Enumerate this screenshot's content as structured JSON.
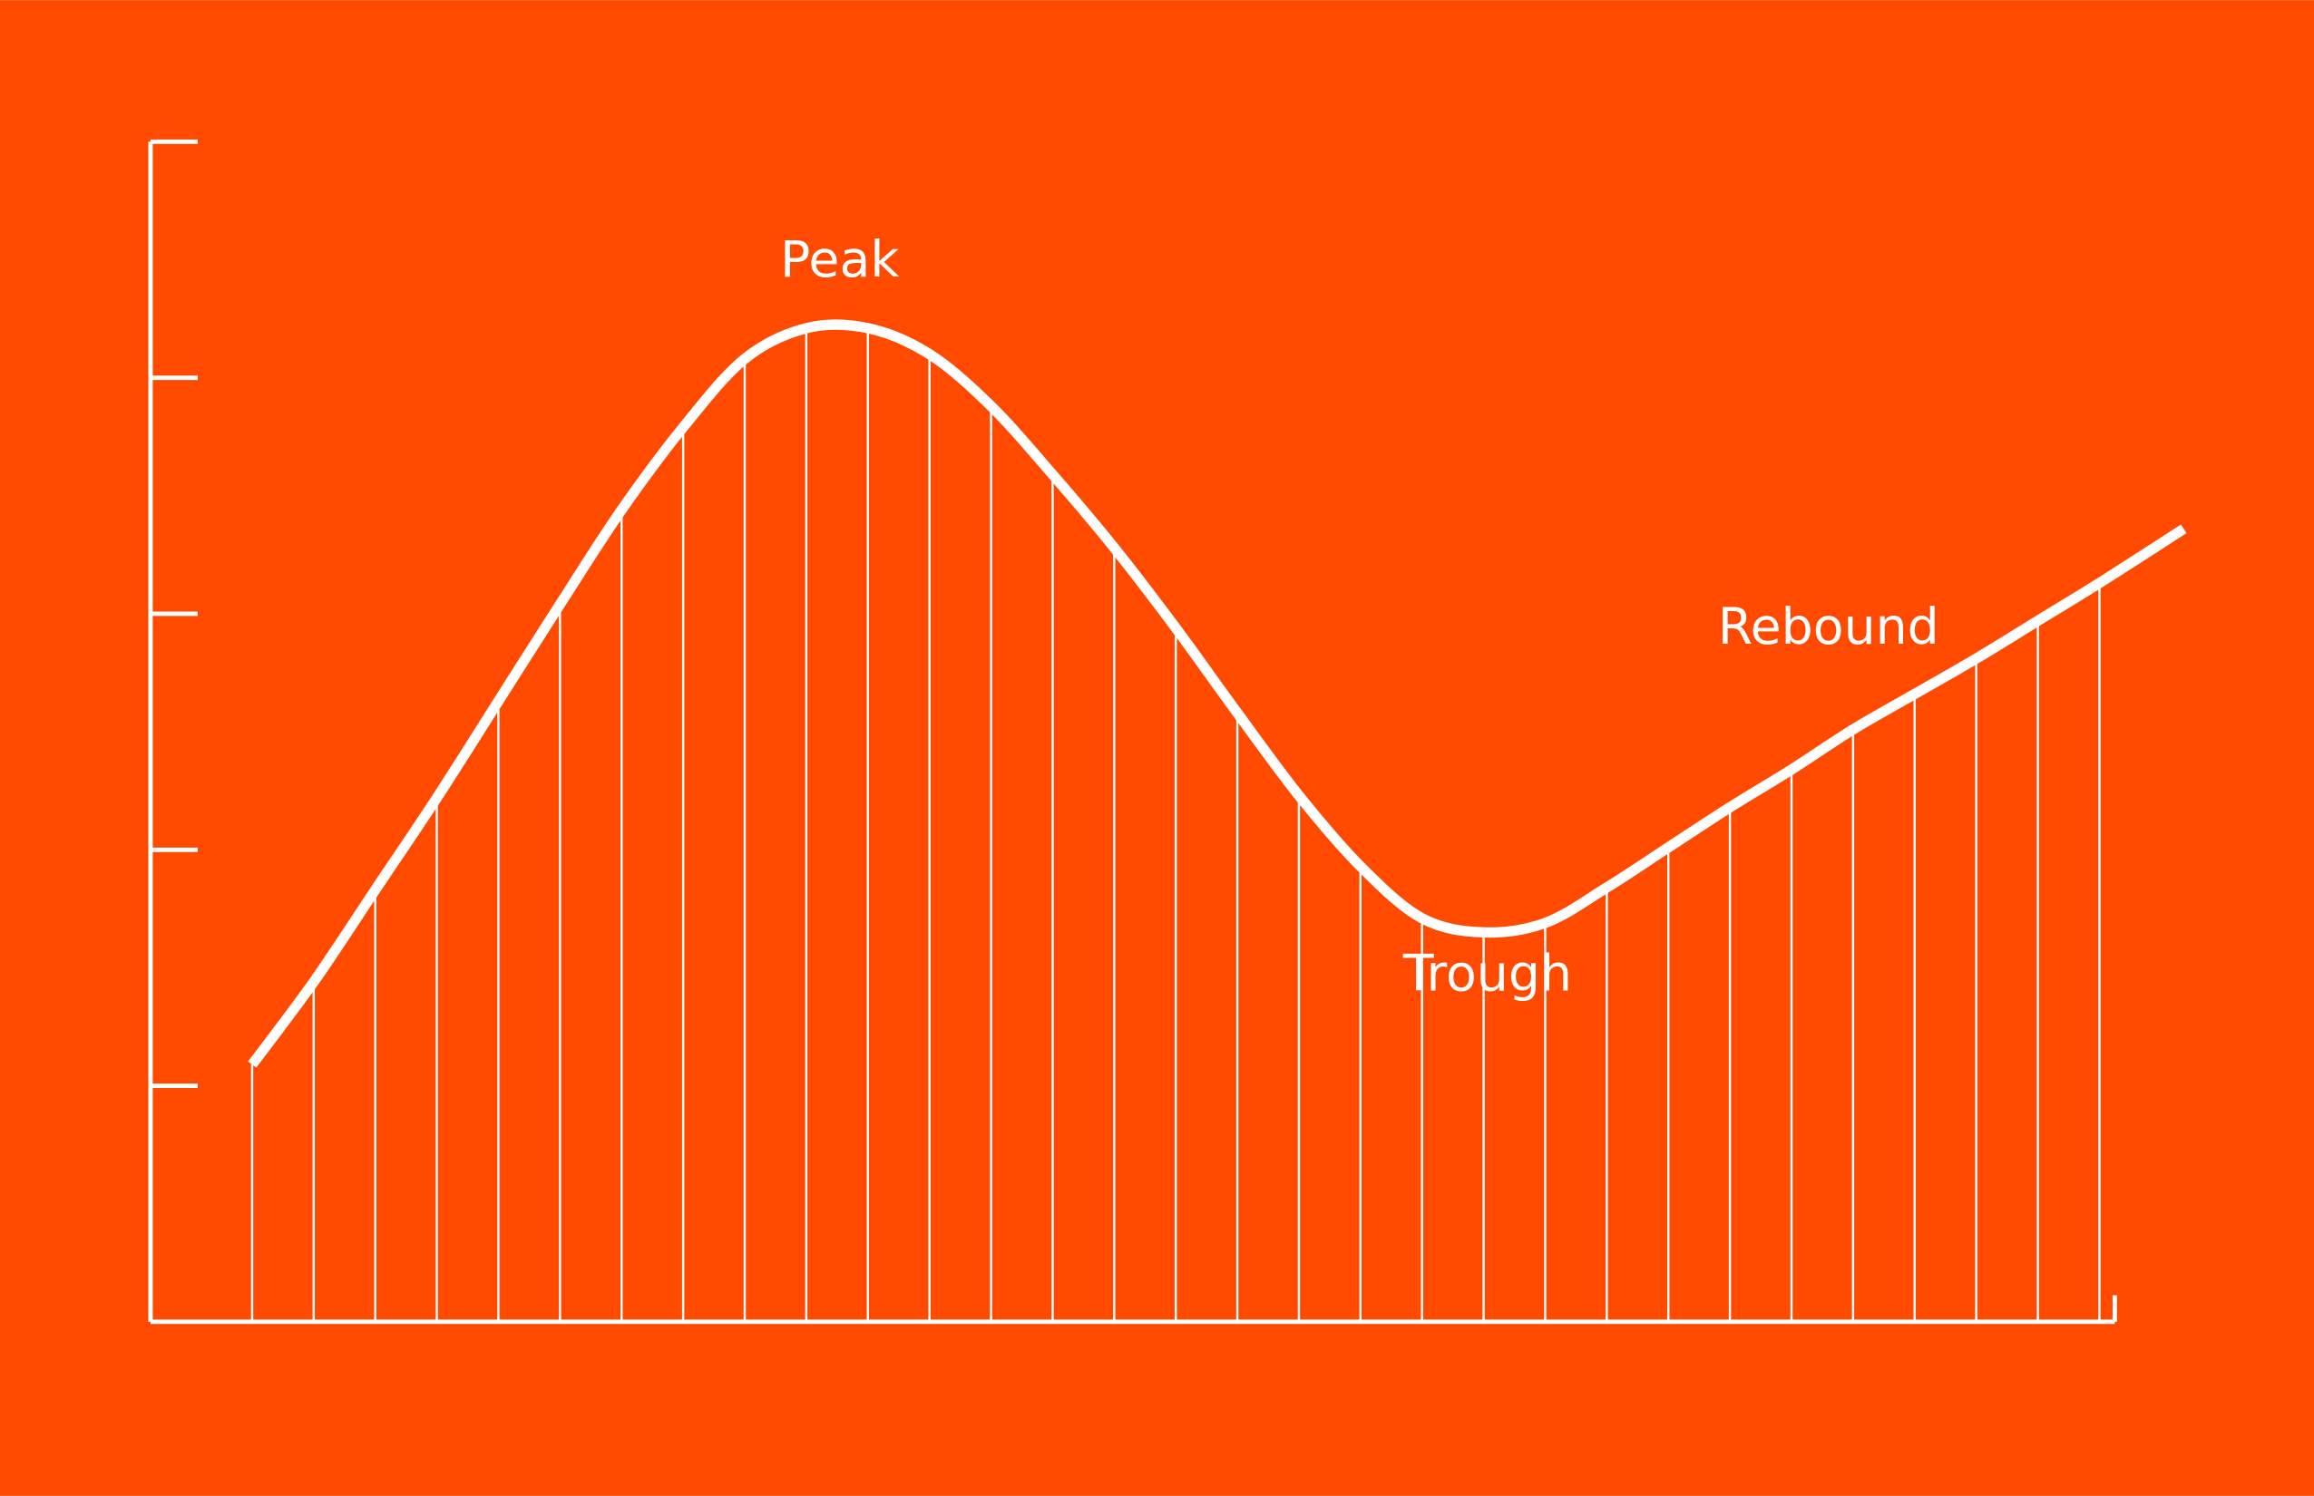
{
  "chart_data": {
    "type": "line",
    "annotations": [
      {
        "text": "Peak"
      },
      {
        "text": "Trough"
      },
      {
        "text": "Rebound"
      }
    ],
    "x": [
      0,
      1,
      2,
      3,
      4,
      5,
      6,
      7,
      8,
      9,
      10,
      11,
      12,
      13,
      14,
      15,
      16,
      17,
      18,
      19,
      20,
      21,
      22,
      23,
      24,
      25,
      26,
      27,
      28,
      29,
      30,
      31.37
    ],
    "series": [
      {
        "color": "#ffffff",
        "values": [
          1.09,
          1.44,
          1.83,
          2.22,
          2.63,
          3.04,
          3.44,
          3.79,
          4.08,
          4.21,
          4.21,
          4.1,
          3.88,
          3.59,
          3.28,
          2.94,
          2.58,
          2.23,
          1.93,
          1.71,
          1.65,
          1.69,
          1.84,
          2.01,
          2.18,
          2.34,
          2.51,
          2.66,
          2.81,
          2.97,
          3.13,
          3.36
        ]
      }
    ],
    "xlim": [
      -1.65,
      30.25
    ],
    "ylim": [
      0,
      5
    ],
    "yticks": [
      1,
      2,
      3,
      4,
      5
    ],
    "background": "#ff4a00",
    "drop_lines": true
  }
}
